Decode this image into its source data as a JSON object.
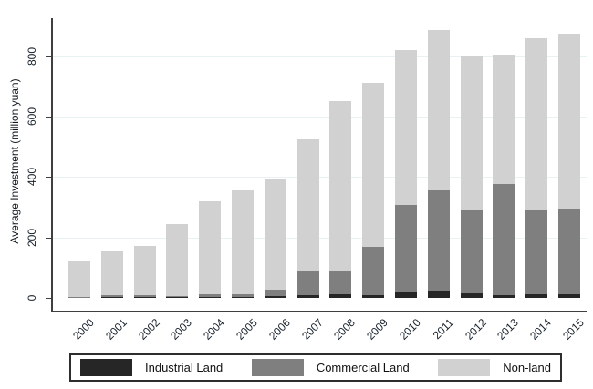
{
  "chart_data": {
    "type": "bar",
    "stacked": true,
    "title": "",
    "xlabel": "",
    "ylabel": "Average Investment (million yuan)",
    "categories": [
      "2000",
      "2001",
      "2002",
      "2003",
      "2004",
      "2005",
      "2006",
      "2007",
      "2008",
      "2009",
      "2010",
      "2011",
      "2012",
      "2013",
      "2014",
      "2015"
    ],
    "series": [
      {
        "name": "Industrial Land",
        "color": "#262626",
        "values": [
          0,
          2,
          2,
          2,
          3,
          4,
          6,
          9,
          12,
          8,
          18,
          23,
          16,
          10,
          11,
          12
        ]
      },
      {
        "name": "Commercial Land",
        "color": "#7f7f7f",
        "values": [
          3,
          7,
          7,
          4,
          8,
          9,
          20,
          82,
          78,
          160,
          288,
          334,
          273,
          367,
          282,
          284
        ]
      },
      {
        "name": "Non-land",
        "color": "#d1d1d1",
        "values": [
          122,
          149,
          162,
          239,
          309,
          342,
          369,
          434,
          560,
          542,
          514,
          528,
          511,
          428,
          567,
          579
        ]
      }
    ],
    "totals": [
      125,
      158,
      171,
      245,
      320,
      355,
      395,
      525,
      650,
      710,
      820,
      885,
      800,
      805,
      860,
      875
    ],
    "yticks": [
      0,
      200,
      400,
      600,
      800
    ],
    "ylim": [
      0,
      925
    ],
    "grid": true,
    "legend_position": "bottom",
    "colors": {
      "gridline": "#e9f2f3",
      "axis": "#3f3f3f",
      "text": "#16202a",
      "background": "#ffffff"
    }
  },
  "legend": {
    "items": [
      {
        "label": "Industrial Land",
        "color": "#262626"
      },
      {
        "label": "Commercial Land",
        "color": "#7f7f7f"
      },
      {
        "label": "Non-land",
        "color": "#d1d1d1"
      }
    ]
  }
}
